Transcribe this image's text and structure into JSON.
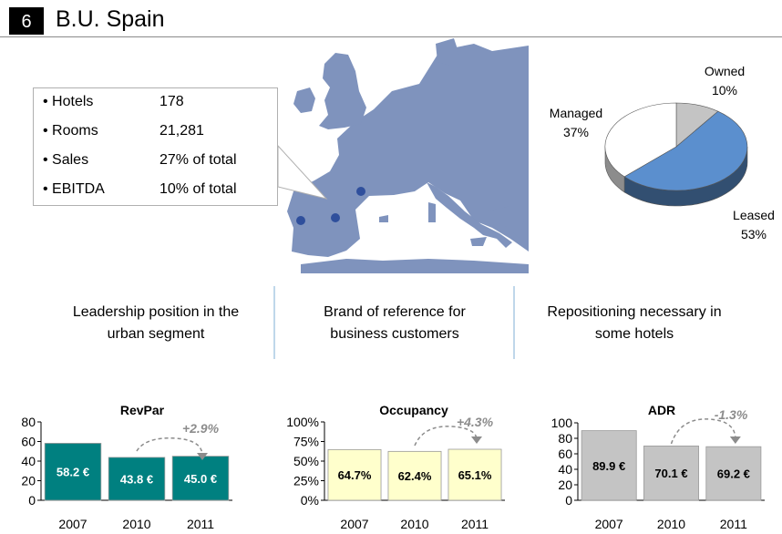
{
  "header": {
    "number": "6",
    "title": "B.U. Spain"
  },
  "kpis": [
    {
      "label": "• Hotels",
      "value": "178"
    },
    {
      "label": "• Rooms",
      "value": "21,281"
    },
    {
      "label": "• Sales",
      "value": "27% of total"
    },
    {
      "label": "• EBITDA",
      "value": "10% of total"
    }
  ],
  "map": {
    "land_color": "#7f93bd",
    "marker_color": "#2f4f9c"
  },
  "pie": {
    "slices": [
      {
        "label": "Owned",
        "pct_text": "10%",
        "value": 10,
        "color": "#c4c4c4"
      },
      {
        "label": "Leased",
        "pct_text": "53%",
        "value": 53,
        "color": "#5b8fce"
      },
      {
        "label": "Managed",
        "pct_text": "37%",
        "value": 37,
        "color": "#ffffff"
      }
    ]
  },
  "points": [
    {
      "line1": "Leadership position in the",
      "line2": "urban segment"
    },
    {
      "line1": "Brand of reference for",
      "line2": "business customers"
    },
    {
      "line1": "Repositioning necessary in",
      "line2": "some hotels"
    }
  ],
  "chart_data": [
    {
      "type": "bar",
      "title": "RevPar",
      "categories": [
        "2007",
        "2010",
        "2011"
      ],
      "values": [
        58.2,
        43.8,
        45.0
      ],
      "value_labels": [
        "58.2 €",
        "43.8 €",
        "45.0 €"
      ],
      "ylim": [
        0,
        80
      ],
      "yticks": [
        "0",
        "20",
        "40",
        "60",
        "80"
      ],
      "change": "+2.9%",
      "bar_color": "#008080",
      "label_color": "#ffffff"
    },
    {
      "type": "bar",
      "title": "Occupancy",
      "categories": [
        "2007",
        "2010",
        "2011"
      ],
      "values": [
        64.7,
        62.4,
        65.1
      ],
      "value_labels": [
        "64.7%",
        "62.4%",
        "65.1%"
      ],
      "ylim": [
        0,
        100
      ],
      "yticks": [
        "0%",
        "25%",
        "50%",
        "75%",
        "100%"
      ],
      "change": "+4.3%",
      "bar_color": "#ffffcc",
      "label_color": "#000000"
    },
    {
      "type": "bar",
      "title": "ADR",
      "categories": [
        "2007",
        "2010",
        "2011"
      ],
      "values": [
        89.9,
        70.1,
        69.2
      ],
      "value_labels": [
        "89.9 €",
        "70.1 €",
        "69.2 €"
      ],
      "ylim": [
        0,
        100
      ],
      "yticks": [
        "0",
        "20",
        "40",
        "60",
        "80",
        "100"
      ],
      "change": "-1.3%",
      "bar_color": "#c4c4c4",
      "label_color": "#000000"
    }
  ]
}
